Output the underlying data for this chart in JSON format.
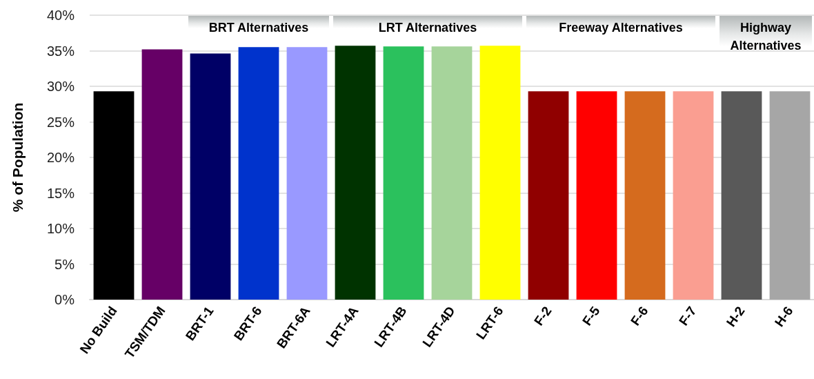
{
  "chart_data": {
    "type": "bar",
    "ylabel": "% of Population",
    "categories": [
      "No Build",
      "TSM/TDM",
      "BRT-1",
      "BRT-6",
      "BRT-6A",
      "LRT-4A",
      "LRT-4B",
      "LRT-4D",
      "LRT-6",
      "F-2",
      "F-5",
      "F-6",
      "F-7",
      "H-2",
      "H-6"
    ],
    "values": [
      29.3,
      35.2,
      34.6,
      35.5,
      35.5,
      35.7,
      35.6,
      35.6,
      35.7,
      29.3,
      29.3,
      29.3,
      29.3,
      29.3,
      29.3
    ],
    "colors": [
      "#000000",
      "#660066",
      "#000066",
      "#0033cc",
      "#9999ff",
      "#003300",
      "#2bc15d",
      "#a6d49b",
      "#ffff00",
      "#900000",
      "#ff0000",
      "#d56b1e",
      "#fa9e91",
      "#595959",
      "#a6a6a6"
    ],
    "ylim": [
      0,
      40
    ],
    "yticks": [
      {
        "value": 0,
        "label": "0%"
      },
      {
        "value": 5,
        "label": "5%"
      },
      {
        "value": 10,
        "label": "10%"
      },
      {
        "value": 15,
        "label": "15%"
      },
      {
        "value": 20,
        "label": "20%"
      },
      {
        "value": 25,
        "label": "25%"
      },
      {
        "value": 30,
        "label": "30%"
      },
      {
        "value": 35,
        "label": "35%"
      },
      {
        "value": 40,
        "label": "40%"
      }
    ],
    "grid": "y",
    "bands": [
      {
        "axis": "x",
        "from": "BRT-1",
        "to": "BRT-6A",
        "label": "BRT Alternatives",
        "color": "#b3b8b8"
      },
      {
        "axis": "x",
        "from": "LRT-4A",
        "to": "LRT-6",
        "label": "LRT Alternatives",
        "color": "#b3b8b8"
      },
      {
        "axis": "x",
        "from": "F-2",
        "to": "F-7",
        "label": "Freeway Alternatives",
        "color": "#b3b8b8"
      },
      {
        "axis": "x",
        "from": "H-2",
        "to": "H-6",
        "label": "Highway Alternatives",
        "color": "#b3b8b8"
      }
    ]
  }
}
